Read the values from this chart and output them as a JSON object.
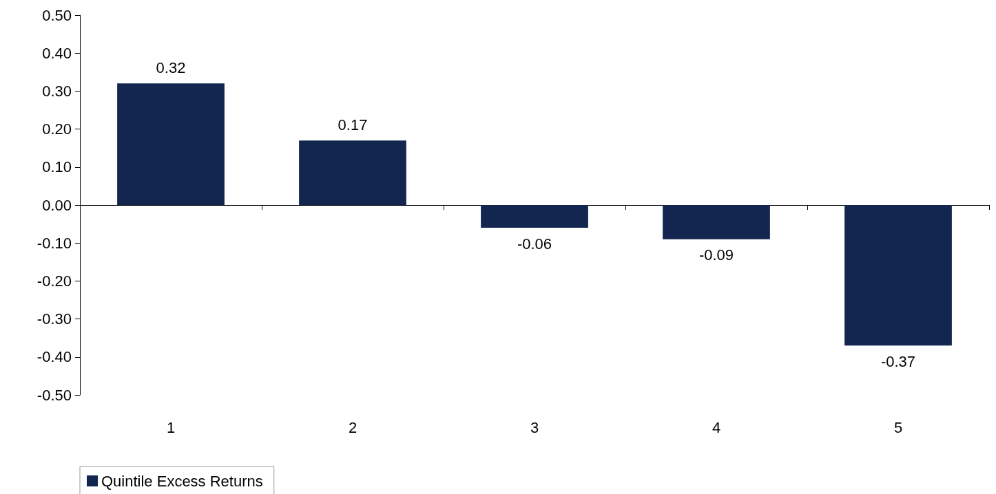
{
  "chart_data": {
    "type": "bar",
    "categories": [
      "1",
      "2",
      "3",
      "4",
      "5"
    ],
    "series": [
      {
        "name": "Quintile Excess Returns",
        "color": "#12264f",
        "values": [
          0.32,
          0.17,
          -0.06,
          -0.09,
          -0.37
        ]
      }
    ],
    "ylim": [
      -0.5,
      0.5
    ],
    "yticks": [
      {
        "value": -0.5,
        "label": "-0.50"
      },
      {
        "value": -0.4,
        "label": "-0.40"
      },
      {
        "value": -0.3,
        "label": "-0.30"
      },
      {
        "value": -0.2,
        "label": "-0.20"
      },
      {
        "value": -0.1,
        "label": "-0.10"
      },
      {
        "value": 0,
        "label": "0.00"
      },
      {
        "value": 0.1,
        "label": "0.10"
      },
      {
        "value": 0.2,
        "label": "0.20"
      },
      {
        "value": 0.3,
        "label": "0.30"
      },
      {
        "value": 0.4,
        "label": "0.40"
      },
      {
        "value": 0.5,
        "label": "0.50"
      }
    ],
    "data_labels": true,
    "legend": "bottom left"
  }
}
